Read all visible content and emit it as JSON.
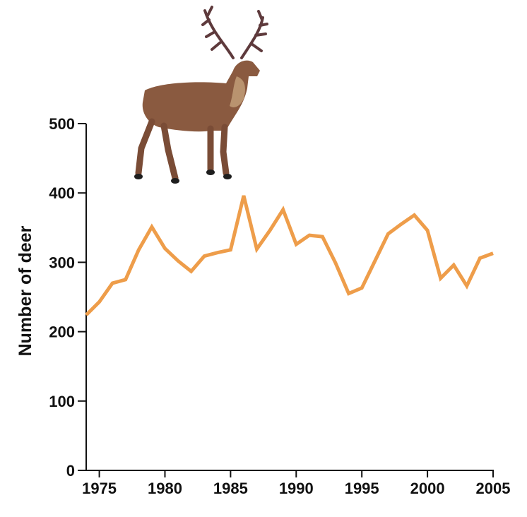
{
  "chart_data": {
    "type": "line",
    "title": "",
    "xlabel": "",
    "ylabel": "Number of deer",
    "xlim": [
      1974,
      2005
    ],
    "ylim": [
      0,
      500
    ],
    "xticks": [
      1975,
      1980,
      1985,
      1990,
      1995,
      2000,
      2005
    ],
    "yticks": [
      0,
      100,
      200,
      300,
      400,
      500
    ],
    "grid": false,
    "legend": "none",
    "series": [
      {
        "color": "#EE9D4A",
        "x": [
          1974,
          1975,
          1976,
          1977,
          1978,
          1979,
          1980,
          1981,
          1982,
          1983,
          1984,
          1985,
          1986,
          1987,
          1988,
          1989,
          1990,
          1991,
          1992,
          1993,
          1994,
          1995,
          1996,
          1997,
          1998,
          1999,
          2000,
          2001,
          2002,
          2003,
          2004,
          2005
        ],
        "y": [
          224,
          243,
          270,
          275,
          318,
          351,
          320,
          302,
          287,
          309,
          314,
          318,
          396,
          319,
          346,
          376,
          326,
          339,
          337,
          299,
          255,
          263,
          302,
          341,
          355,
          368,
          346,
          277,
          296,
          266,
          306,
          313
        ]
      }
    ]
  },
  "illustration": {
    "name": "red-deer-stag",
    "body_color": "#8A5A40",
    "antler_color": "#5E3A3C"
  }
}
